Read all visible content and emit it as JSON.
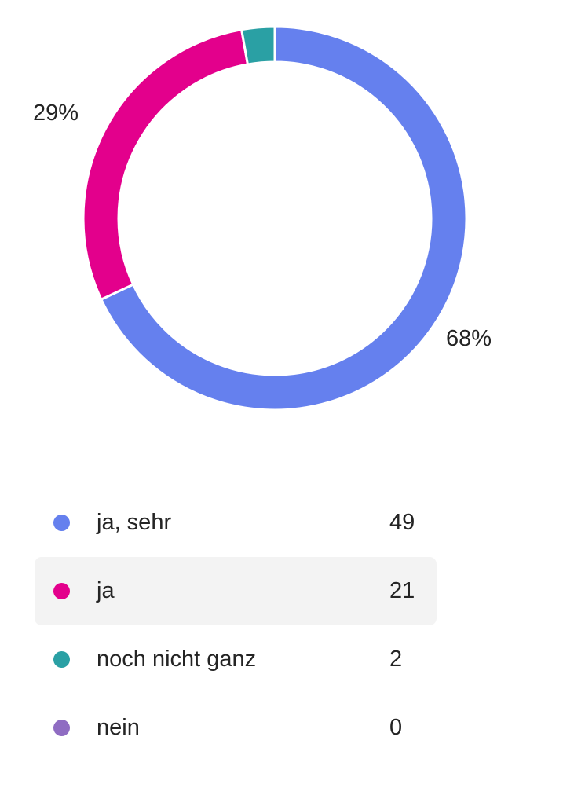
{
  "chart_data": {
    "type": "pie",
    "donut": true,
    "categories": [
      "ja, sehr",
      "ja",
      "noch nicht ganz",
      "nein"
    ],
    "values": [
      49,
      21,
      2,
      0
    ],
    "colors": [
      "#6580EE",
      "#E3008C",
      "#2AA0A4",
      "#8F6CC2"
    ],
    "data_labels": [
      "68%",
      "29%",
      "",
      ""
    ],
    "highlighted_category": "ja"
  }
}
